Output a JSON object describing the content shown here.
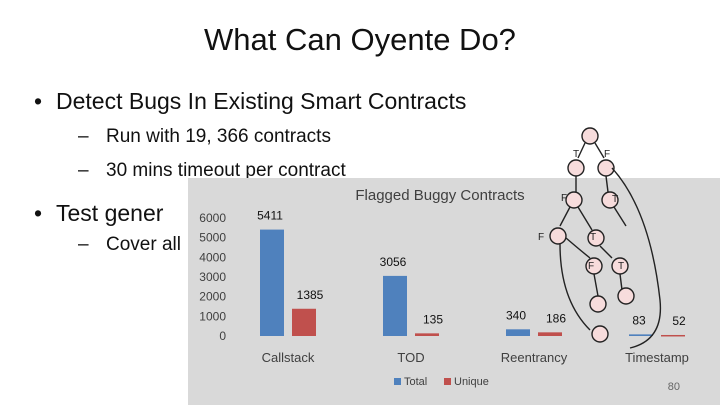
{
  "slide": {
    "title": "What Can Oyente Do?",
    "bullet1": "Detect Bugs In Existing Smart Contracts",
    "sub1": "Run with 19, 366 contracts",
    "sub2": "30 mins timeout per contract",
    "bullet2": "Test gener",
    "sub3": "Cover all",
    "page_number": "80",
    "bullet_glyph": "•",
    "dash_glyph": "–"
  },
  "cfg_labels": {
    "t1": "T",
    "f1": "F",
    "f2": "F",
    "t2": "T",
    "f3": "F",
    "t3": "T",
    "f4": "F",
    "t4": "T"
  },
  "chart_data": {
    "type": "bar",
    "title": "Flagged Buggy Contracts",
    "categories": [
      "Callstack",
      "TOD",
      "Reentrancy",
      "Timestamp"
    ],
    "series": [
      {
        "name": "Total",
        "values": [
          5411,
          3056,
          340,
          83
        ],
        "color": "#4f81bd"
      },
      {
        "name": "Unique",
        "values": [
          1385,
          135,
          186,
          52
        ],
        "color": "#c0504d"
      }
    ],
    "ylim": [
      0,
      6000
    ],
    "yticks": [
      "6000",
      "5000",
      "4000",
      "3000",
      "2000",
      "1000",
      "0"
    ],
    "data_labels": [
      "5411",
      "1385",
      "3056",
      "135",
      "340",
      "186",
      "83",
      "52"
    ],
    "grid": false,
    "legend": "bottom"
  }
}
